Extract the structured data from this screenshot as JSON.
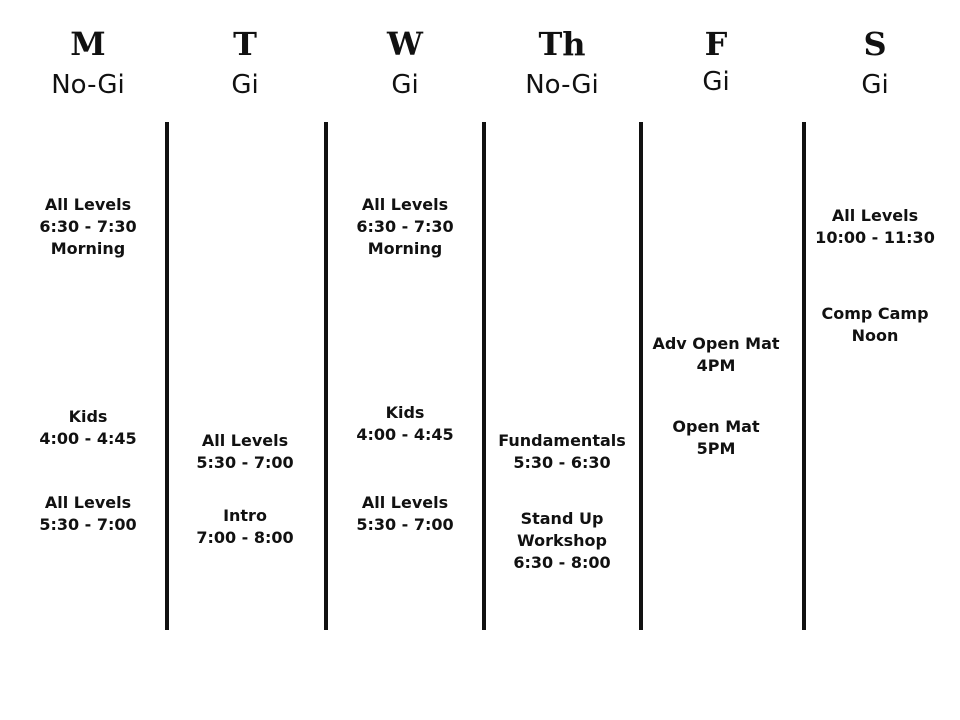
{
  "schedule": {
    "days": [
      {
        "day": "M",
        "style": "No-Gi",
        "blocks": [
          [
            "All Levels",
            "6:30 - 7:30",
            "Morning"
          ],
          [
            "Kids",
            "4:00 - 4:45"
          ],
          [
            "All Levels",
            "5:30 - 7:00"
          ]
        ]
      },
      {
        "day": "T",
        "style": "Gi",
        "blocks": [
          [
            "All Levels",
            "5:30 - 7:00"
          ],
          [
            "Intro",
            "7:00 - 8:00"
          ]
        ]
      },
      {
        "day": "W",
        "style": "Gi",
        "blocks": [
          [
            "All Levels",
            "6:30 - 7:30",
            "Morning"
          ],
          [
            "Kids",
            "4:00 - 4:45"
          ],
          [
            "All Levels",
            "5:30 - 7:00"
          ]
        ]
      },
      {
        "day": "Th",
        "style": "No-Gi",
        "blocks": [
          [
            "Fundamentals",
            "5:30 - 6:30"
          ],
          [
            "Stand Up",
            "Workshop",
            "6:30 - 8:00"
          ]
        ]
      },
      {
        "day": "F",
        "style": "Gi",
        "blocks": [
          [
            "Adv Open Mat",
            "4PM"
          ],
          [
            "Open Mat",
            "5PM"
          ]
        ]
      },
      {
        "day": "S",
        "style": "Gi",
        "blocks": [
          [
            "All Levels",
            "10:00 - 11:30"
          ],
          [
            "Comp Camp",
            "Noon"
          ]
        ]
      }
    ]
  }
}
